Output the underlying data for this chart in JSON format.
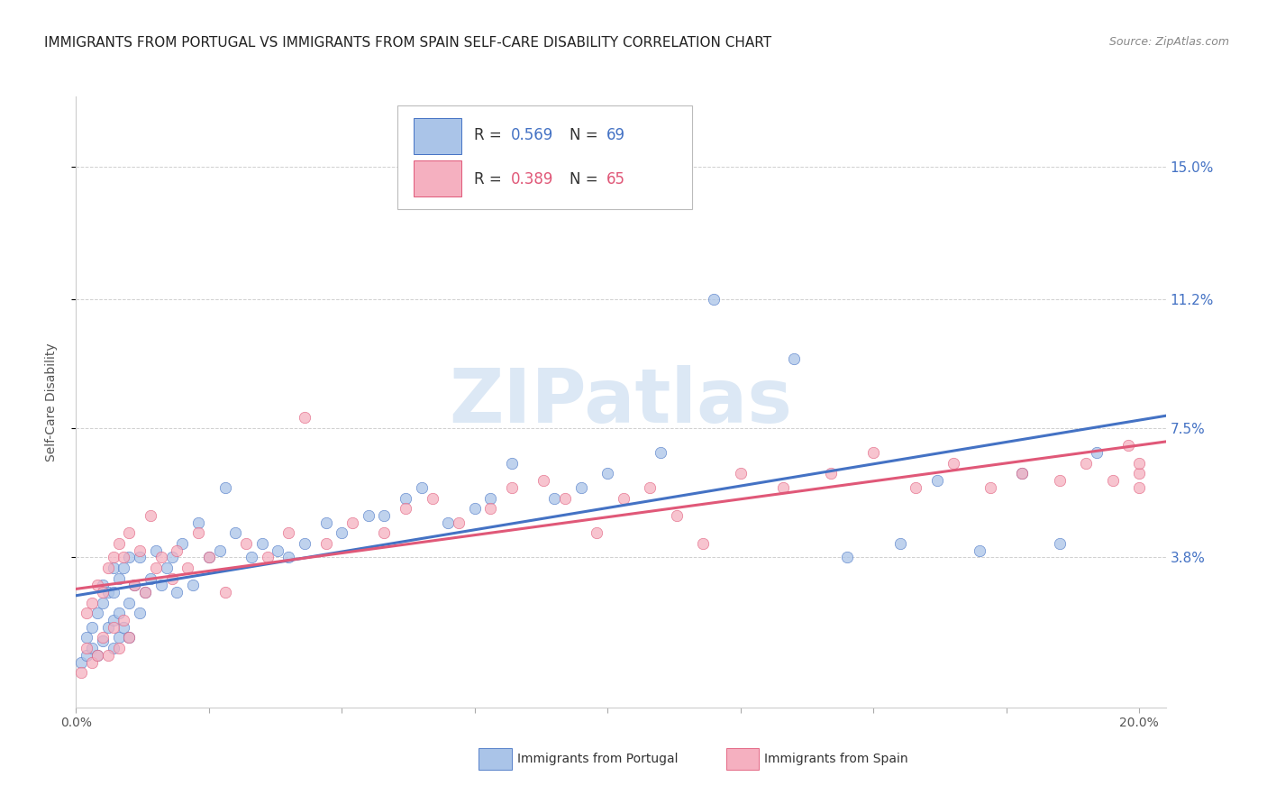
{
  "title": "IMMIGRANTS FROM PORTUGAL VS IMMIGRANTS FROM SPAIN SELF-CARE DISABILITY CORRELATION CHART",
  "source": "Source: ZipAtlas.com",
  "ylabel": "Self-Care Disability",
  "ytick_labels": [
    "3.8%",
    "7.5%",
    "11.2%",
    "15.0%"
  ],
  "ytick_values": [
    0.038,
    0.075,
    0.112,
    0.15
  ],
  "xlim": [
    0.0,
    0.205
  ],
  "ylim": [
    -0.005,
    0.17
  ],
  "portugal_color": "#aac4e8",
  "spain_color": "#f5b0c0",
  "portugal_line_color": "#4472c4",
  "spain_line_color": "#e05878",
  "legend_R_portugal": "0.569",
  "legend_N_portugal": "69",
  "legend_R_spain": "0.389",
  "legend_N_spain": "65",
  "background_color": "#ffffff",
  "grid_color": "#d0d0d0",
  "title_fontsize": 11,
  "axis_label_color": "#4472c4",
  "watermark_text": "ZIPatlas",
  "watermark_color": "#dce8f5",
  "watermark_fontsize": 60,
  "portugal_scatter_x": [
    0.001,
    0.002,
    0.002,
    0.003,
    0.003,
    0.004,
    0.004,
    0.005,
    0.005,
    0.005,
    0.006,
    0.006,
    0.007,
    0.007,
    0.007,
    0.007,
    0.008,
    0.008,
    0.008,
    0.009,
    0.009,
    0.01,
    0.01,
    0.01,
    0.011,
    0.012,
    0.012,
    0.013,
    0.014,
    0.015,
    0.016,
    0.017,
    0.018,
    0.019,
    0.02,
    0.022,
    0.023,
    0.025,
    0.027,
    0.028,
    0.03,
    0.033,
    0.035,
    0.038,
    0.04,
    0.043,
    0.047,
    0.05,
    0.055,
    0.058,
    0.062,
    0.065,
    0.07,
    0.075,
    0.078,
    0.082,
    0.09,
    0.095,
    0.1,
    0.11,
    0.12,
    0.135,
    0.145,
    0.155,
    0.162,
    0.17,
    0.178,
    0.185,
    0.192
  ],
  "portugal_scatter_y": [
    0.008,
    0.01,
    0.015,
    0.012,
    0.018,
    0.01,
    0.022,
    0.014,
    0.025,
    0.03,
    0.018,
    0.028,
    0.012,
    0.02,
    0.028,
    0.035,
    0.015,
    0.022,
    0.032,
    0.018,
    0.035,
    0.015,
    0.025,
    0.038,
    0.03,
    0.022,
    0.038,
    0.028,
    0.032,
    0.04,
    0.03,
    0.035,
    0.038,
    0.028,
    0.042,
    0.03,
    0.048,
    0.038,
    0.04,
    0.058,
    0.045,
    0.038,
    0.042,
    0.04,
    0.038,
    0.042,
    0.048,
    0.045,
    0.05,
    0.05,
    0.055,
    0.058,
    0.048,
    0.052,
    0.055,
    0.065,
    0.055,
    0.058,
    0.062,
    0.068,
    0.112,
    0.095,
    0.038,
    0.042,
    0.06,
    0.04,
    0.062,
    0.042,
    0.068
  ],
  "spain_scatter_x": [
    0.001,
    0.002,
    0.002,
    0.003,
    0.003,
    0.004,
    0.004,
    0.005,
    0.005,
    0.006,
    0.006,
    0.007,
    0.007,
    0.008,
    0.008,
    0.009,
    0.009,
    0.01,
    0.01,
    0.011,
    0.012,
    0.013,
    0.014,
    0.015,
    0.016,
    0.018,
    0.019,
    0.021,
    0.023,
    0.025,
    0.028,
    0.032,
    0.036,
    0.04,
    0.043,
    0.047,
    0.052,
    0.058,
    0.062,
    0.067,
    0.072,
    0.078,
    0.082,
    0.088,
    0.092,
    0.098,
    0.103,
    0.108,
    0.113,
    0.118,
    0.125,
    0.133,
    0.142,
    0.15,
    0.158,
    0.165,
    0.172,
    0.178,
    0.185,
    0.19,
    0.195,
    0.198,
    0.2,
    0.2,
    0.2
  ],
  "spain_scatter_y": [
    0.005,
    0.012,
    0.022,
    0.008,
    0.025,
    0.01,
    0.03,
    0.015,
    0.028,
    0.01,
    0.035,
    0.018,
    0.038,
    0.012,
    0.042,
    0.02,
    0.038,
    0.015,
    0.045,
    0.03,
    0.04,
    0.028,
    0.05,
    0.035,
    0.038,
    0.032,
    0.04,
    0.035,
    0.045,
    0.038,
    0.028,
    0.042,
    0.038,
    0.045,
    0.078,
    0.042,
    0.048,
    0.045,
    0.052,
    0.055,
    0.048,
    0.052,
    0.058,
    0.06,
    0.055,
    0.045,
    0.055,
    0.058,
    0.05,
    0.042,
    0.062,
    0.058,
    0.062,
    0.068,
    0.058,
    0.065,
    0.058,
    0.062,
    0.06,
    0.065,
    0.06,
    0.07,
    0.062,
    0.058,
    0.065
  ]
}
